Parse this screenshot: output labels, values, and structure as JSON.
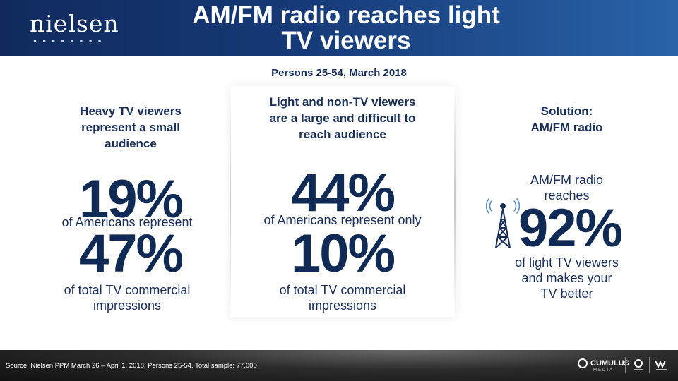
{
  "header": {
    "logo_text": "nielsen",
    "logo_dots": "••••••••",
    "title_line1": "AM/FM radio reaches light",
    "title_line2": "TV viewers"
  },
  "subtitle": "Persons 25-54, March 2018",
  "left": {
    "heading": [
      "Heavy TV viewers",
      "represent a small",
      "audience"
    ],
    "stat1_value": "19%",
    "stat1_text": "of Americans represent",
    "stat2_value": "47%",
    "stat2_text": [
      "of total TV commercial",
      "impressions"
    ]
  },
  "center": {
    "heading": [
      "Light and non-TV viewers",
      "are a large and difficult to",
      "reach audience"
    ],
    "stat1_value": "44%",
    "stat1_text": "of Americans represent only",
    "stat2_value": "10%",
    "stat2_text": [
      "of total TV commercial",
      "impressions"
    ]
  },
  "right": {
    "heading": [
      "Solution:",
      "AM/FM radio"
    ],
    "lead_text": [
      "AM/FM radio",
      "reaches"
    ],
    "stat_value": "92%",
    "stat_text": [
      "of light TV viewers",
      "and makes your",
      "TV better"
    ],
    "icon": "radio-tower-icon"
  },
  "footer": {
    "source": "Source: Nielsen PPM March 26 – April 1, 2018; Persons 25-54, Total sample: 77,000",
    "cumulus_label": "CUMULUS",
    "cumulus_sub": "MEDIA"
  },
  "colors": {
    "header_dark": "#102a5c",
    "header_light": "#2a63a8",
    "text_navy": "#1a2f5a",
    "stat_navy": "#0f2a55",
    "tower_blue": "#5a8fc0"
  }
}
